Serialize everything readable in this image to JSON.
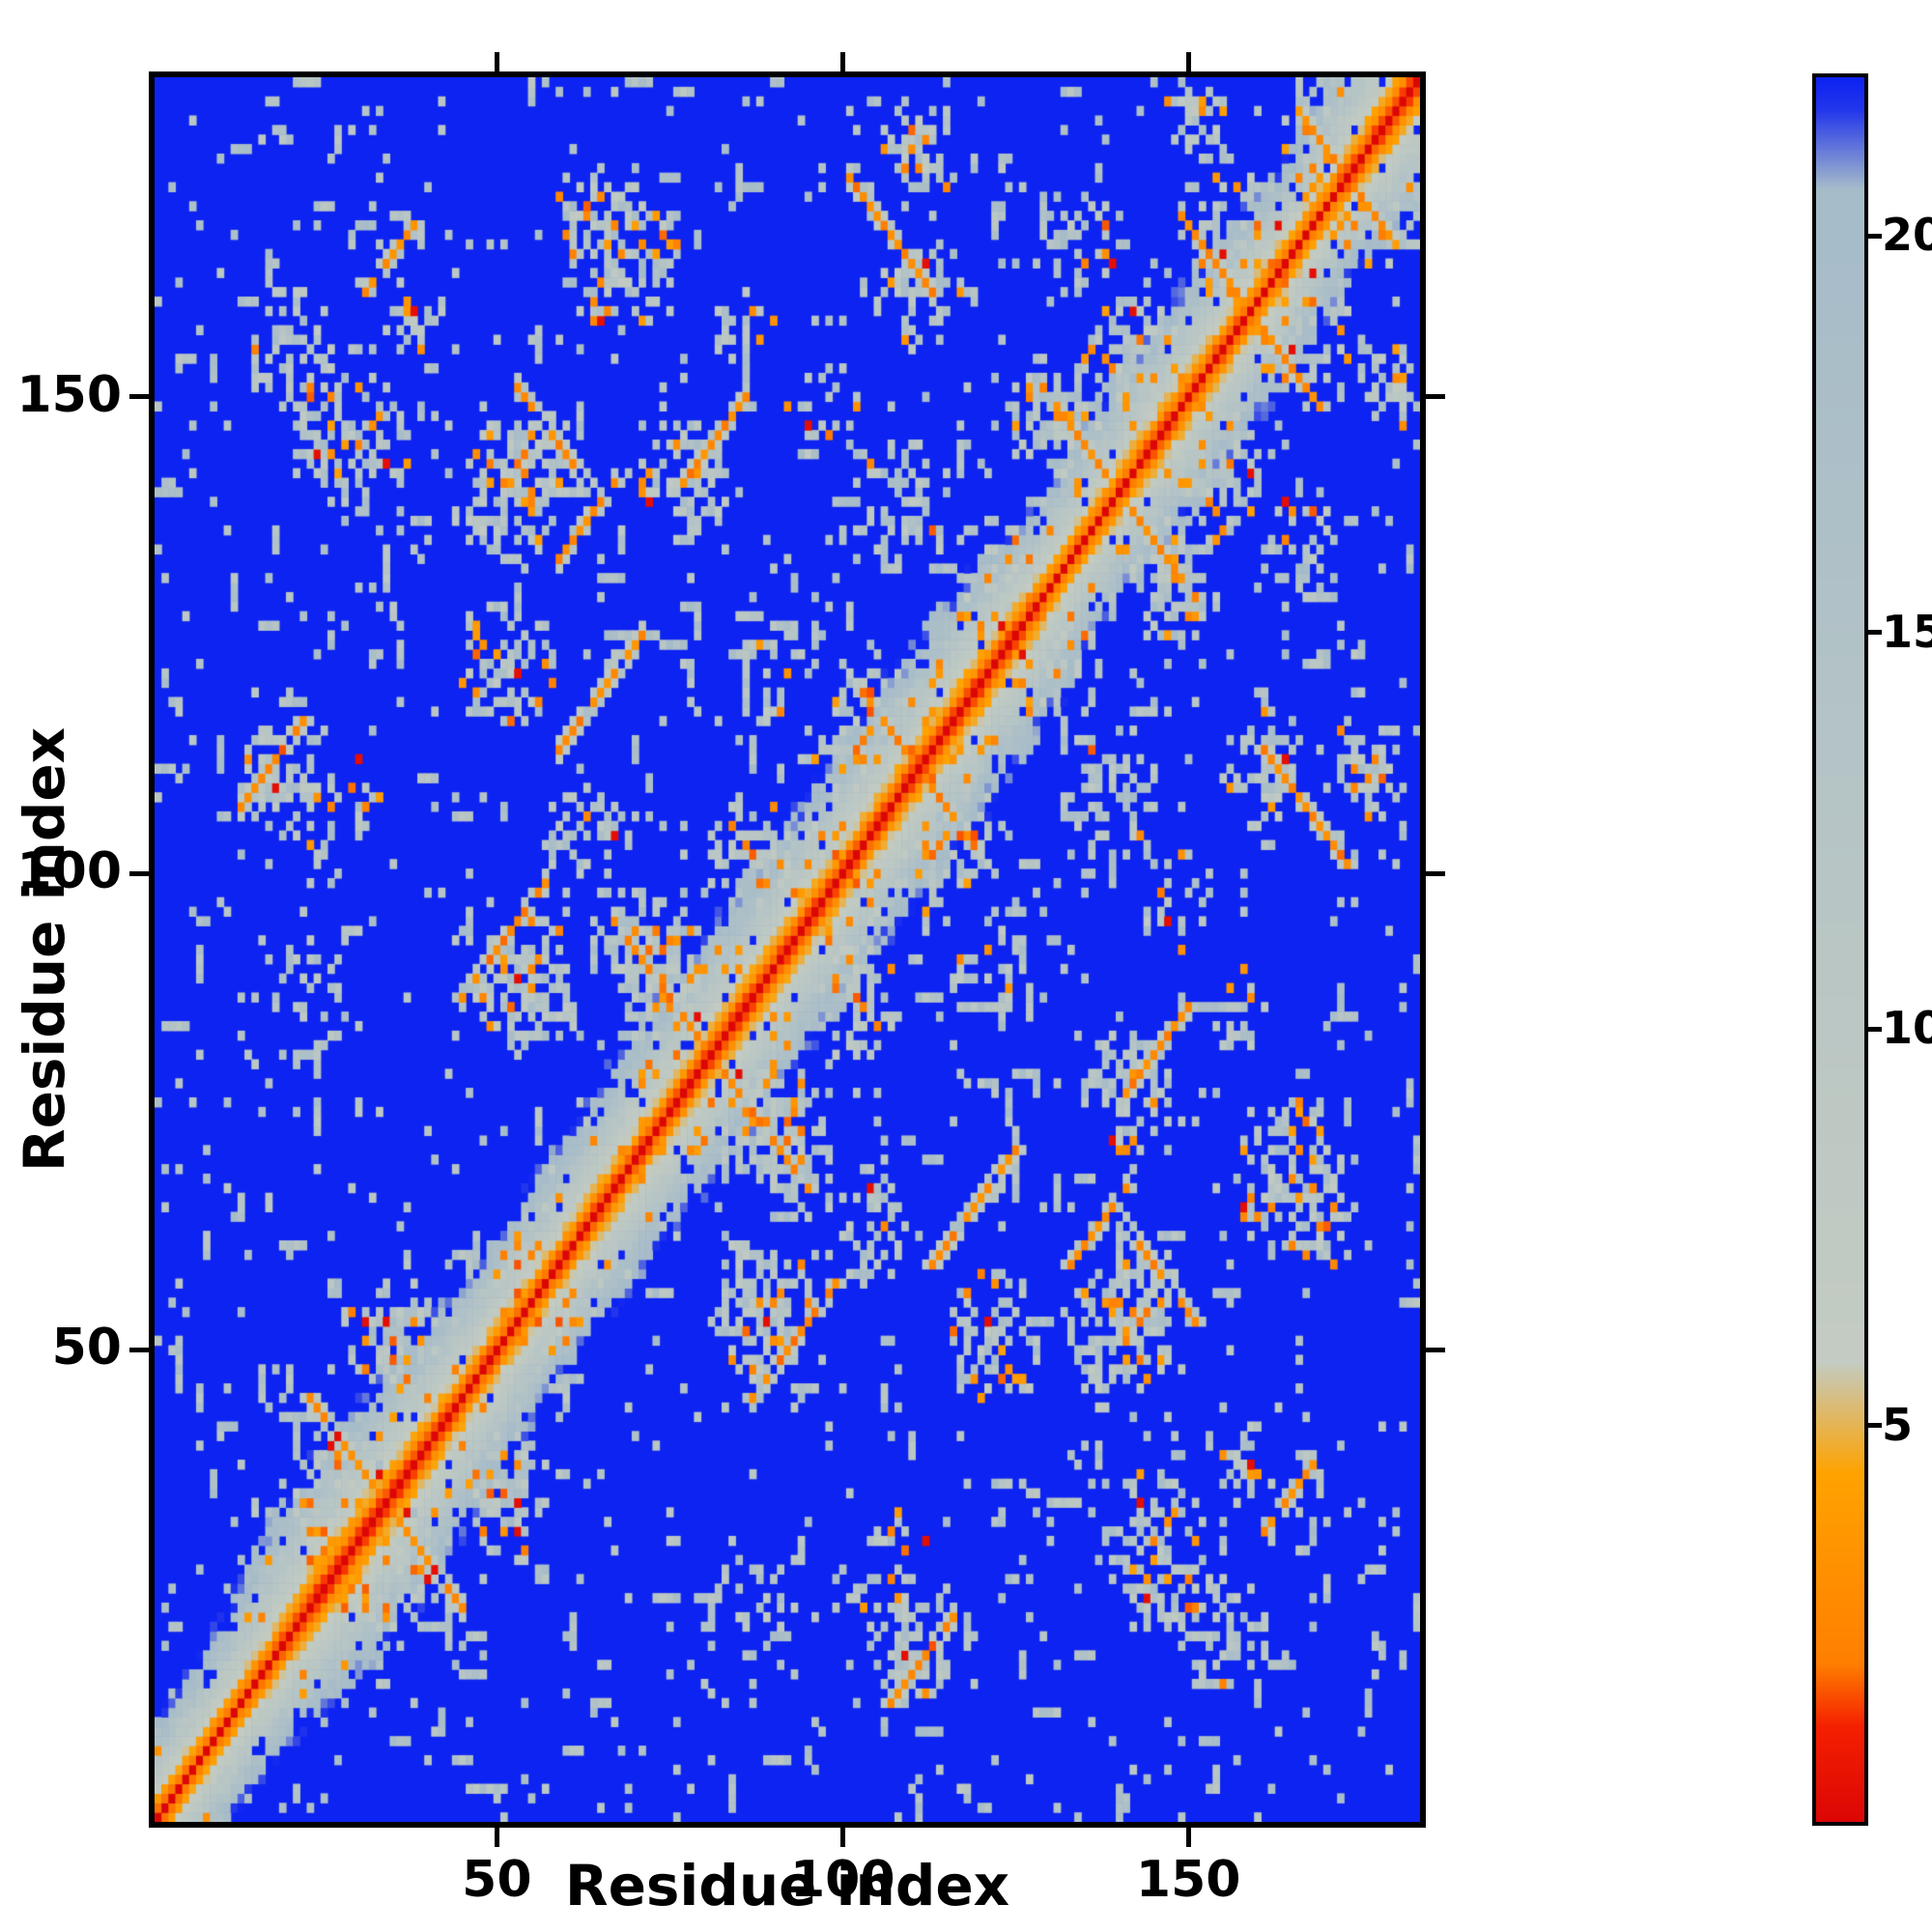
{
  "chart_data": {
    "type": "heatmap",
    "title": "",
    "xlabel": "Residue index",
    "ylabel": "Residue index",
    "n_residues": 183,
    "x_ticks": [
      50,
      100,
      150
    ],
    "y_ticks": [
      50,
      100,
      150
    ],
    "value_range": [
      0,
      22
    ],
    "colorbar_ticks": [
      5,
      10,
      15,
      20
    ],
    "colorbar_position": "right",
    "grid": false,
    "legend": false,
    "description": "Symmetric residue-residue distance map: red diagonal (near-zero distance), orange near-diagonal band, gray contact clusters, blue background (far pairs).",
    "background_color": "#0d23f2",
    "colormap_stops": [
      [
        0.0,
        "#dc0606"
      ],
      [
        1.2,
        "#f52000"
      ],
      [
        2.0,
        "#ff7f00"
      ],
      [
        4.4,
        "#ffa300"
      ],
      [
        5.8,
        "#c4ccc2"
      ],
      [
        20.6,
        "#a6bcca"
      ],
      [
        21.6,
        "#2336ec"
      ],
      [
        22.0,
        "#0d23f2"
      ]
    ],
    "seed": 1337,
    "band": {
      "scale": 1.8,
      "width_mod_min": 0.75,
      "width_mod_max": 1.35,
      "max_sep": 26
    },
    "clusters": [
      [
        30,
        30,
        11,
        11,
        0.55
      ],
      [
        34,
        50,
        7,
        7,
        0.6
      ],
      [
        56,
        56,
        8,
        8,
        0.5
      ],
      [
        75,
        85,
        9,
        9,
        0.55
      ],
      [
        70,
        93,
        7,
        6,
        0.55
      ],
      [
        86,
        100,
        7,
        7,
        0.55
      ],
      [
        53,
        87,
        9,
        8,
        0.6
      ],
      [
        17,
        109,
        6,
        7,
        0.55
      ],
      [
        28,
        145,
        9,
        9,
        0.4
      ],
      [
        36,
        157,
        6,
        6,
        0.35
      ],
      [
        50,
        138,
        8,
        7,
        0.55
      ],
      [
        64,
        168,
        7,
        6,
        0.4
      ],
      [
        76,
        140,
        7,
        7,
        0.45
      ],
      [
        62,
        103,
        6,
        6,
        0.5
      ],
      [
        50,
        121,
        8,
        7,
        0.6
      ],
      [
        53,
        143,
        7,
        6,
        0.5
      ],
      [
        67,
        163,
        9,
        8,
        0.5
      ],
      [
        103,
        114,
        9,
        9,
        0.5
      ],
      [
        108,
        137,
        7,
        8,
        0.5
      ],
      [
        110,
        160,
        7,
        7,
        0.5
      ],
      [
        110,
        174,
        6,
        6,
        0.45
      ],
      [
        129,
        147,
        7,
        7,
        0.55
      ],
      [
        141,
        152,
        8,
        8,
        0.55
      ],
      [
        155,
        167,
        8,
        8,
        0.55
      ],
      [
        168,
        177,
        6,
        6,
        0.6
      ],
      [
        123,
        130,
        7,
        7,
        0.55
      ],
      [
        98,
        98,
        8,
        8,
        0.45
      ],
      [
        88,
        120,
        6,
        5,
        0.4
      ],
      [
        22,
        88,
        5,
        5,
        0.35
      ],
      [
        133,
        165,
        6,
        6,
        0.45
      ],
      [
        150,
        178,
        6,
        5,
        0.5
      ],
      [
        96,
        148,
        6,
        6,
        0.4
      ],
      [
        85,
        156,
        5,
        5,
        0.35
      ],
      [
        20,
        155,
        7,
        7,
        0.35
      ],
      [
        25,
        105,
        8,
        7,
        0.35
      ]
    ],
    "streaks": [
      [
        44,
        22,
        12,
        -1,
        1
      ],
      [
        92,
        68,
        15,
        -1,
        1
      ],
      [
        118,
        102,
        12,
        -1,
        1
      ],
      [
        172,
        100,
        13,
        -1,
        1
      ],
      [
        168,
        148,
        16,
        -1,
        1
      ],
      [
        62,
        140,
        11,
        -1,
        1
      ],
      [
        150,
        128,
        10,
        -1,
        1
      ],
      [
        86,
        44,
        13,
        1,
        1
      ],
      [
        106,
        12,
        10,
        1,
        1
      ],
      [
        58,
        112,
        13,
        1,
        1
      ],
      [
        132,
        58,
        10,
        1,
        1
      ],
      [
        178,
        166,
        12,
        -1,
        1
      ],
      [
        140,
        76,
        10,
        1,
        1
      ],
      [
        160,
        30,
        8,
        1,
        1
      ]
    ],
    "speckles": {
      "count": 500,
      "runs": 170
    }
  }
}
